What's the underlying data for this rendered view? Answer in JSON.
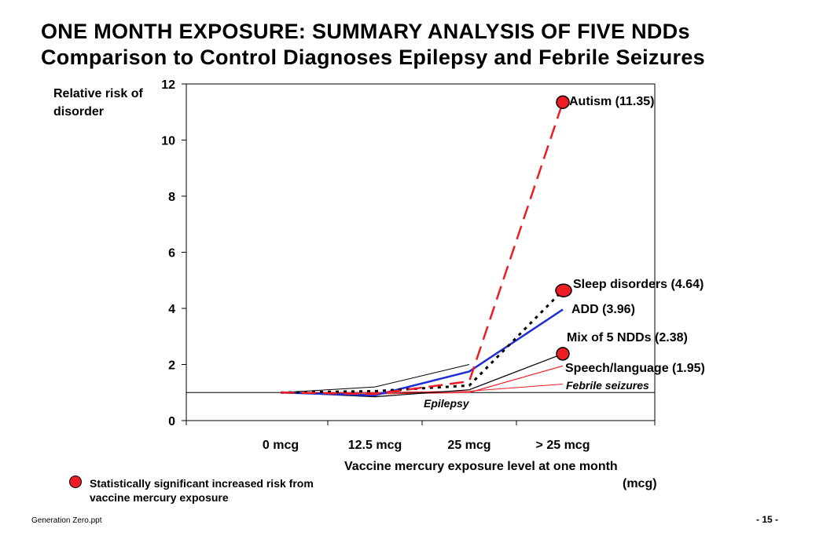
{
  "slide": {
    "title_line1": "ONE MONTH EXPOSURE: SUMMARY ANALYSIS OF FIVE NDDs",
    "title_line2": "Comparison to Control Diagnoses Epilepsy and Febrile Seizures",
    "legend_text": "Statistically significant increased risk from vaccine mercury exposure",
    "footer_left": "Generation Zero.ppt",
    "footer_right": "- 15 -"
  },
  "chart_data": {
    "type": "line",
    "ylabel": "Relative risk of disorder",
    "xlabel": "Vaccine mercury exposure level at one month",
    "xlabel_unit": "(mcg)",
    "categories": [
      "0 mcg",
      "12.5 mcg",
      "25 mcg",
      "> 25 mcg"
    ],
    "ylim": [
      0,
      12
    ],
    "yticks": [
      0,
      2,
      4,
      6,
      8,
      10,
      12
    ],
    "reference_line": 1,
    "grid": false,
    "series": [
      {
        "name": "Autism",
        "label": "Autism (11.35)",
        "values": [
          1.0,
          0.95,
          1.4,
          11.35
        ],
        "color": "#ee1c25",
        "dash": "long",
        "width": 2.5,
        "significant": true
      },
      {
        "name": "Sleep disorders",
        "label": "Sleep disorders (4.64)",
        "values": [
          1.0,
          1.05,
          1.25,
          4.64
        ],
        "color": "#000000",
        "dash": "dot",
        "width": 3,
        "significant": true
      },
      {
        "name": "ADD",
        "label": "ADD (3.96)",
        "values": [
          1.0,
          0.9,
          1.75,
          3.96
        ],
        "color": "#1f2fd6",
        "dash": "solid",
        "width": 2.5,
        "significant": false
      },
      {
        "name": "Mix of 5 NDDs",
        "label": "Mix of 5 NDDs (2.38)",
        "values": [
          1.0,
          0.85,
          1.1,
          2.38
        ],
        "color": "#000000",
        "dash": "solid",
        "width": 1.2,
        "significant": true
      },
      {
        "name": "Speech/language",
        "label": "Speech/language (1.95)",
        "values": [
          1.0,
          0.95,
          1.0,
          1.95
        ],
        "color": "#ee1c25",
        "dash": "solid",
        "width": 1.2,
        "significant": false
      },
      {
        "name": "Febrile seizures",
        "label": "Febrile seizures",
        "values": [
          1.0,
          1.0,
          1.05,
          1.3
        ],
        "color": "#ee1c25",
        "dash": "solid",
        "width": 1.0,
        "significant": false
      },
      {
        "name": "Epilepsy",
        "label": "Epilepsy",
        "values": [
          1.0,
          1.2,
          2.0,
          null
        ],
        "color": "#000000",
        "dash": "solid",
        "width": 1.0,
        "significant": false
      }
    ]
  }
}
